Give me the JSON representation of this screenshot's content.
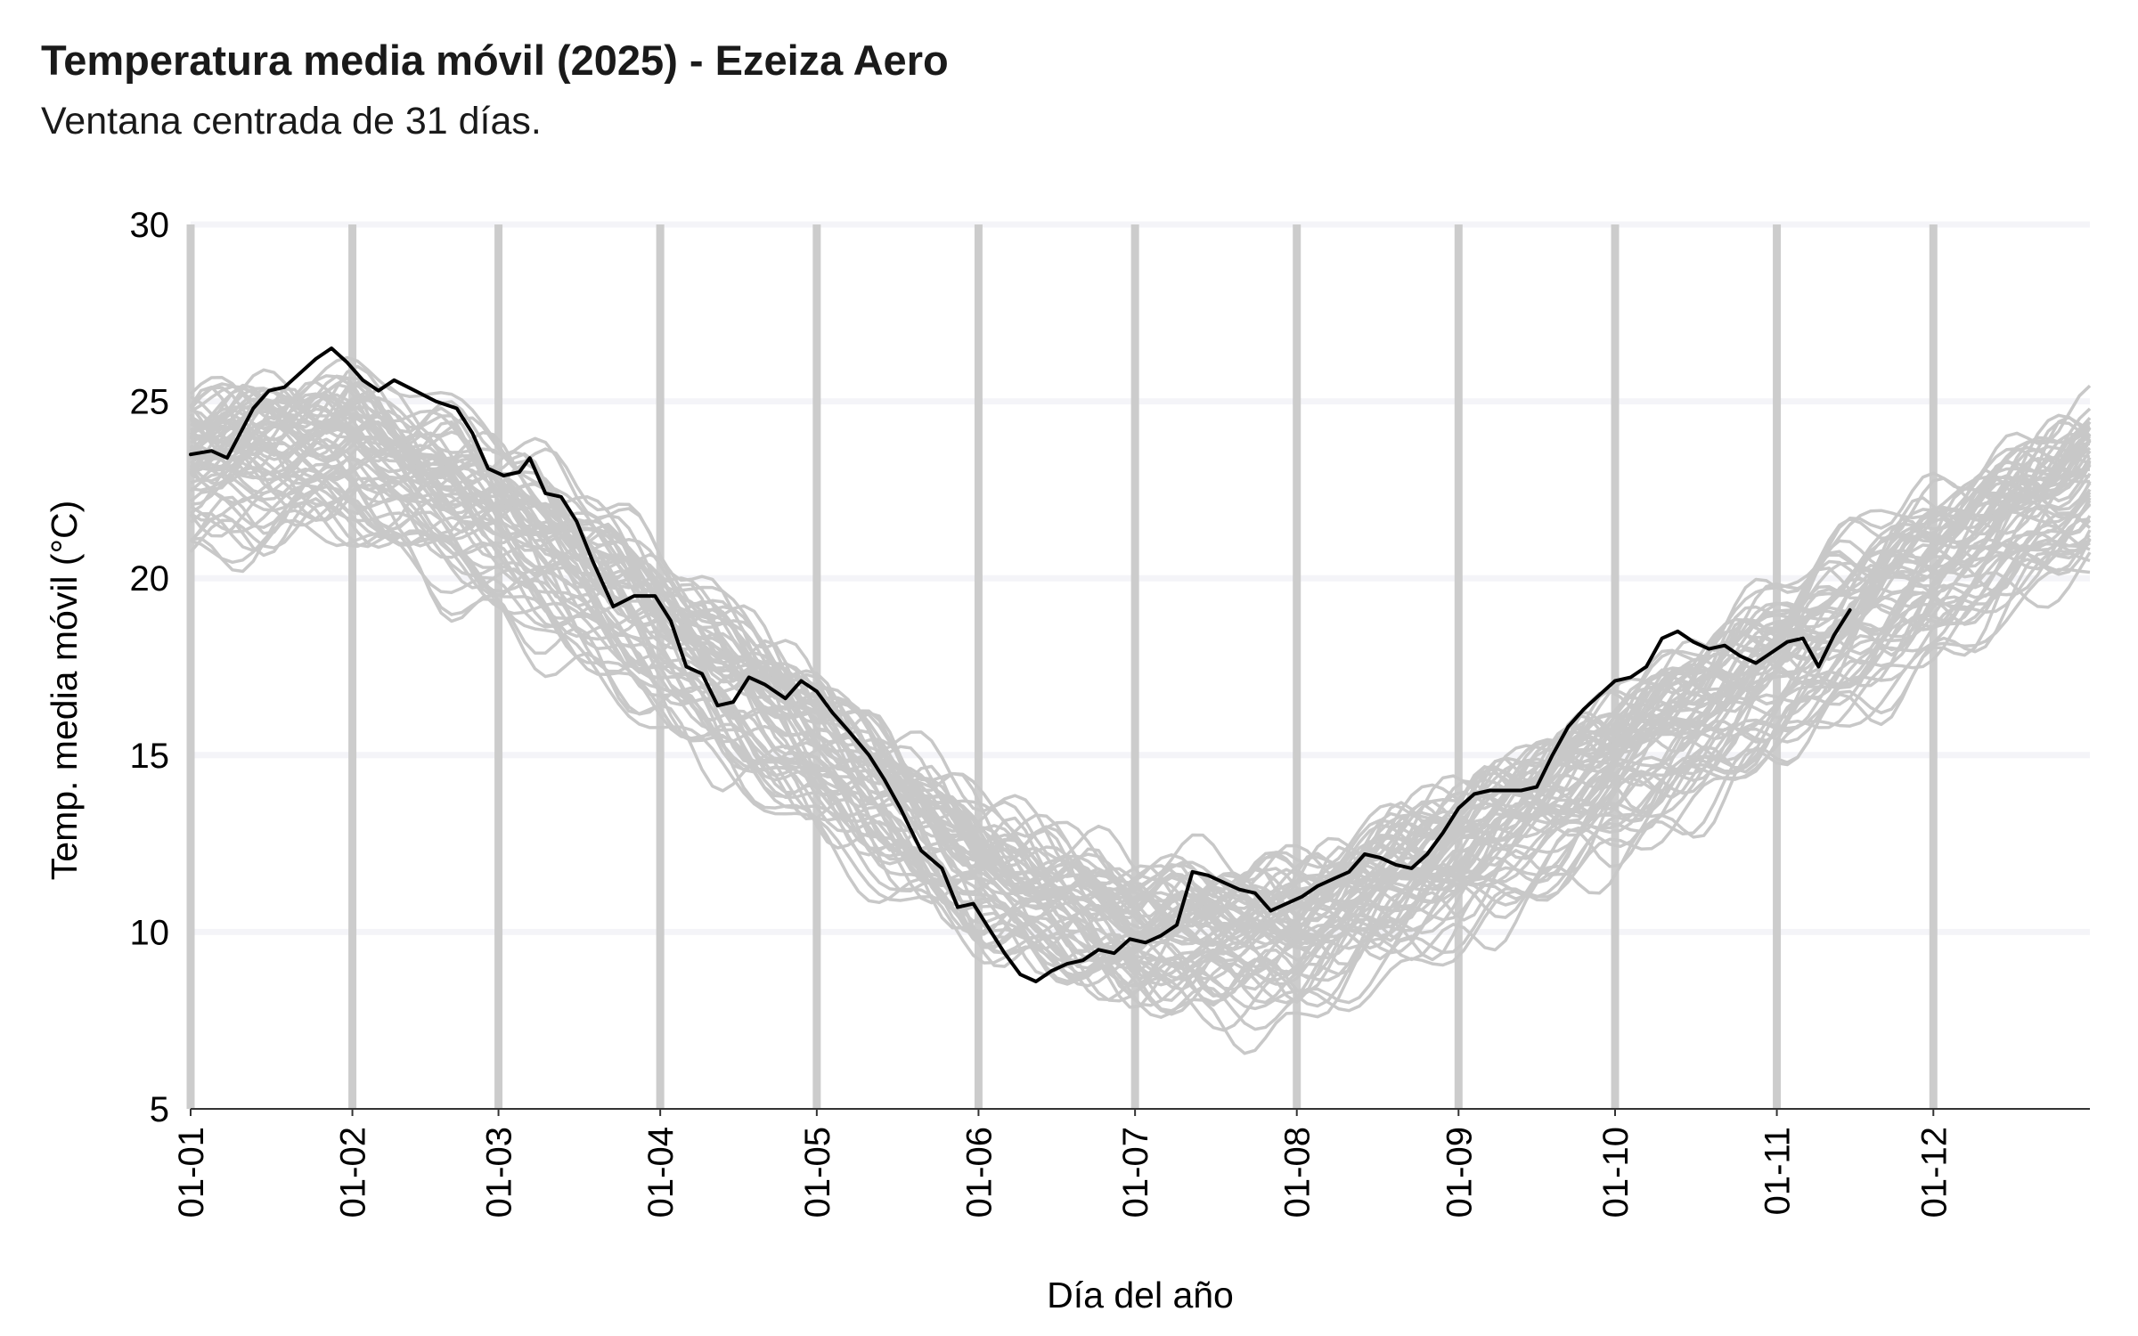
{
  "chart_data": {
    "type": "line",
    "title": "Temperatura media móvil (2025) - Ezeiza Aero",
    "subtitle": "Ventana centrada de 31 días.",
    "xlabel": "Día del año",
    "ylabel": "Temp. media móvil (°C)",
    "xlim": [
      1,
      365
    ],
    "ylim": [
      5,
      30
    ],
    "x_tick_labels": [
      "01-01",
      "01-02",
      "01-03",
      "01-04",
      "01-05",
      "01-06",
      "01-07",
      "01-08",
      "01-09",
      "01-10",
      "01-11",
      "01-12"
    ],
    "x_tick_days": [
      1,
      32,
      60,
      91,
      121,
      152,
      182,
      213,
      244,
      274,
      305,
      335
    ],
    "y_ticks": [
      5,
      10,
      15,
      20,
      25,
      30
    ],
    "grid": true,
    "legend": "none",
    "colors": {
      "highlight": "#000000",
      "background_series": "#c8c8c8",
      "vertical_grid": "#cccccc",
      "horizontal_grid": "#f4f4f8"
    },
    "background_series": {
      "description_count": 60,
      "mean_curve": {
        "x": [
          1,
          32,
          60,
          91,
          121,
          152,
          182,
          213,
          244,
          274,
          305,
          335,
          365
        ],
        "y": [
          23.2,
          23.4,
          21.6,
          18.4,
          15.0,
          11.6,
          9.7,
          9.8,
          12.0,
          14.6,
          17.2,
          20.1,
          22.8
        ]
      },
      "spread_range_c": [
        6.2,
        27.2
      ]
    },
    "series": [
      {
        "name": "2025",
        "x": [
          1,
          5,
          8,
          13,
          16,
          19,
          25,
          28,
          31,
          34,
          37,
          40,
          44,
          48,
          52,
          55,
          58,
          61,
          64,
          66,
          69,
          72,
          75,
          78,
          82,
          86,
          90,
          93,
          96,
          99,
          102,
          105,
          108,
          111,
          115,
          118,
          121,
          124,
          127,
          131,
          134,
          137,
          141,
          145,
          148,
          151,
          154,
          157,
          160,
          163,
          166,
          169,
          172,
          175,
          178,
          181,
          184,
          187,
          190,
          193,
          196,
          199,
          202,
          205,
          208,
          211,
          214,
          217,
          220,
          223,
          226,
          229,
          232,
          235,
          238,
          241,
          244,
          247,
          250,
          253,
          256,
          259,
          262,
          265,
          268,
          271,
          274,
          277,
          280,
          283,
          286,
          289,
          292,
          295,
          298,
          301,
          304,
          307,
          310,
          313,
          316,
          319
        ],
        "y": [
          23.5,
          23.6,
          23.4,
          24.8,
          25.3,
          25.4,
          26.2,
          26.5,
          26.1,
          25.6,
          25.3,
          25.6,
          25.3,
          25.0,
          24.8,
          24.1,
          23.1,
          22.9,
          23.0,
          23.4,
          22.4,
          22.3,
          21.6,
          20.5,
          19.2,
          19.5,
          19.5,
          18.8,
          17.5,
          17.3,
          16.4,
          16.5,
          17.2,
          17.0,
          16.6,
          17.1,
          16.8,
          16.2,
          15.7,
          15.0,
          14.3,
          13.5,
          12.3,
          11.8,
          10.7,
          10.8,
          10.1,
          9.4,
          8.8,
          8.6,
          8.9,
          9.1,
          9.2,
          9.5,
          9.4,
          9.8,
          9.7,
          9.9,
          10.2,
          11.7,
          11.6,
          11.4,
          11.2,
          11.1,
          10.6,
          10.8,
          11.0,
          11.3,
          11.5,
          11.7,
          12.2,
          12.1,
          11.9,
          11.8,
          12.2,
          12.8,
          13.5,
          13.9,
          14.0,
          14.0,
          14.0,
          14.1,
          15.0,
          15.8,
          16.3,
          16.7,
          17.1,
          17.2,
          17.5,
          18.3,
          18.5,
          18.2,
          18.0,
          18.1,
          17.8,
          17.6,
          17.9,
          18.2,
          18.3,
          17.5,
          18.4,
          19.1
        ]
      }
    ]
  }
}
